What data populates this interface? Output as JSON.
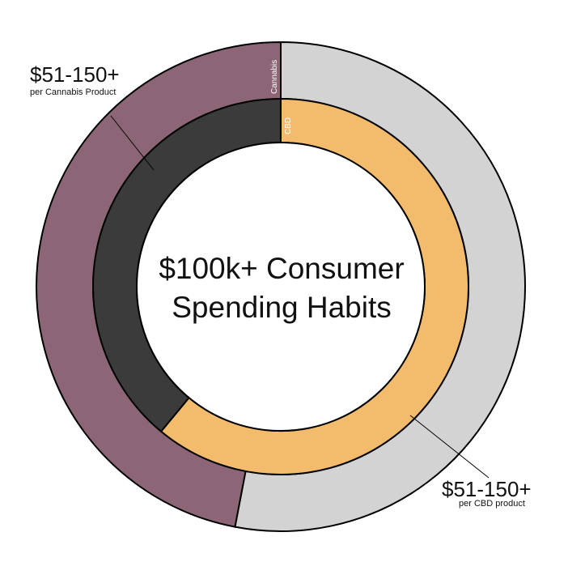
{
  "chart_data": {
    "type": "pie",
    "center_title_lines": [
      "$100k+ Consumer",
      "Spending Habits"
    ],
    "colors": {
      "cannabis": "#8c6676",
      "cannabis_rest": "#d3d3d3",
      "cbd": "#f3bc6c",
      "cbd_rest": "#3b3b3b",
      "stroke": "#000000",
      "hole": "#ffffff"
    },
    "rings": [
      {
        "name": "Cannabis",
        "level": "outer",
        "label": "Cannabis",
        "highlight_share": 0.47,
        "highlight_side": "counterclockwise",
        "callout": {
          "value": "$51-150+",
          "sub": "per Cannabis Product"
        }
      },
      {
        "name": "CBD",
        "level": "inner",
        "label": "CBD",
        "highlight_share": 0.61,
        "highlight_side": "clockwise",
        "callout": {
          "value": "$51-150+",
          "sub": "per CBD product"
        }
      }
    ]
  }
}
